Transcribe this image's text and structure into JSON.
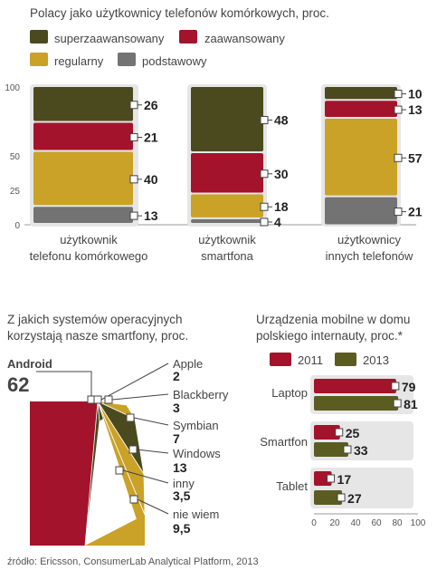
{
  "colors": {
    "superzaawansowany": "#4b4a1f",
    "zaawansowany": "#a3132b",
    "regularny": "#c9a227",
    "podstawowy": "#737373",
    "panel_bg": "#e6e6e6",
    "y2011": "#a3132b",
    "y2013": "#5b5c22",
    "pie_android": "#a3132b",
    "pie_dark": "#4b4a1f",
    "pie_gold": "#c9a227"
  },
  "chart_data": [
    {
      "type": "bar",
      "stacked": true,
      "title": "Polacy jako użytkownicy telefonów komórkowych, proc.",
      "legend": [
        "superzaawansowany",
        "zaawansowany",
        "regularny",
        "podstawowy"
      ],
      "yticks": [
        "100",
        "50",
        "25",
        "0"
      ],
      "ylim": [
        0,
        100
      ],
      "categories": [
        {
          "line1": "użytkownik",
          "line2": "telefonu komórkowego"
        },
        {
          "line1": "użytkownik",
          "line2": "smartfona"
        },
        {
          "line1": "użytkownicy",
          "line2": "innych telefonów"
        }
      ],
      "series": [
        {
          "name": "superzaawansowany",
          "values": [
            26,
            48,
            10
          ]
        },
        {
          "name": "zaawansowany",
          "values": [
            21,
            30,
            13
          ]
        },
        {
          "name": "regularny",
          "values": [
            40,
            18,
            57
          ]
        },
        {
          "name": "podstawowy",
          "values": [
            13,
            4,
            21
          ]
        }
      ]
    },
    {
      "type": "pie",
      "title_line1": "Z jakich systemów operacyjnych",
      "title_line2": "korzystają nasze smartfony, proc.",
      "slices": [
        {
          "name": "Android",
          "value": "62"
        },
        {
          "name": "Apple",
          "value": "2"
        },
        {
          "name": "Blackberry",
          "value": "3"
        },
        {
          "name": "Symbian",
          "value": "7"
        },
        {
          "name": "Windows",
          "value": "13"
        },
        {
          "name": "inny",
          "value": "3,5"
        },
        {
          "name": "nie wiem",
          "value": "9,5"
        }
      ]
    },
    {
      "type": "bar",
      "orientation": "horizontal",
      "title_line1": "Urządzenia mobilne w domu",
      "title_line2": "polskiego internauty, proc.*",
      "legend": [
        "2011",
        "2013"
      ],
      "categories": [
        "Laptop",
        "Smartfon",
        "Tablet"
      ],
      "series": [
        {
          "name": "2011",
          "values": [
            79,
            25,
            17
          ]
        },
        {
          "name": "2013",
          "values": [
            81,
            33,
            27
          ]
        }
      ],
      "xlim": [
        0,
        100
      ],
      "xticks": [
        "0",
        "20",
        "40",
        "60",
        "80",
        "100"
      ]
    }
  ],
  "source": "źródło: Ericsson, ConsumerLab Analytical Platform, 2013"
}
